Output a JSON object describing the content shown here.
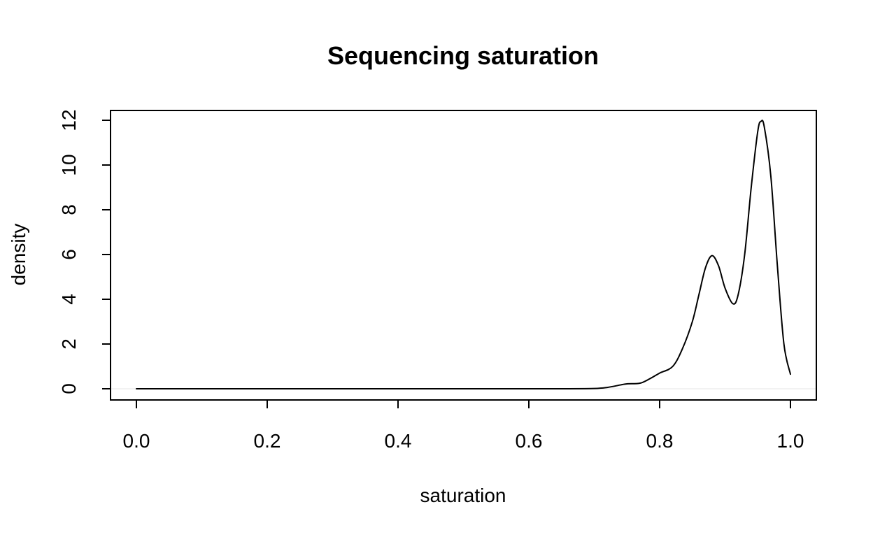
{
  "chart_data": {
    "type": "line",
    "title": "Sequencing saturation",
    "xlabel": "saturation",
    "ylabel": "density",
    "xlim": [
      0.0,
      1.0
    ],
    "ylim": [
      0,
      12
    ],
    "x_ticks": [
      "0.0",
      "0.2",
      "0.4",
      "0.6",
      "0.8",
      "1.0"
    ],
    "y_ticks": [
      "0",
      "2",
      "4",
      "6",
      "8",
      "10",
      "12"
    ],
    "grid": false,
    "colors": {
      "line": "#000000",
      "axis": "#000000",
      "baseline": "#e6e6e6"
    },
    "series": [
      {
        "x": [
          0.0,
          0.1,
          0.2,
          0.3,
          0.4,
          0.5,
          0.6,
          0.65,
          0.7,
          0.72,
          0.74,
          0.75,
          0.77,
          0.785,
          0.8,
          0.82,
          0.835,
          0.85,
          0.86,
          0.87,
          0.88,
          0.89,
          0.9,
          0.912,
          0.92,
          0.93,
          0.94,
          0.95,
          0.955,
          0.96,
          0.97,
          0.98,
          0.99,
          1.0
        ],
        "y": [
          0,
          0,
          0,
          0,
          0,
          0,
          0,
          0,
          0.01,
          0.06,
          0.17,
          0.22,
          0.25,
          0.45,
          0.7,
          1.0,
          1.8,
          3.0,
          4.2,
          5.4,
          5.95,
          5.5,
          4.5,
          3.8,
          4.2,
          6.0,
          9.0,
          11.5,
          11.95,
          11.7,
          9.5,
          5.5,
          2.0,
          0.65
        ]
      }
    ]
  }
}
